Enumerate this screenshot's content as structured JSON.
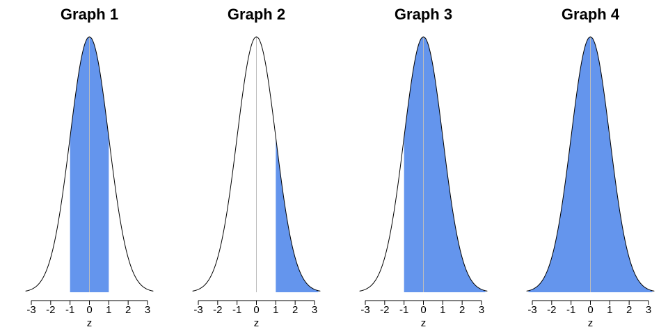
{
  "chart_data": [
    {
      "type": "area",
      "title": "Graph 1",
      "xlabel": "z",
      "ylabel": "",
      "xlim": [
        -3,
        3
      ],
      "x_ticks": [
        -3,
        -2,
        -1,
        0,
        1,
        2,
        3
      ],
      "curve": "standard normal density",
      "shaded_region": [
        -1,
        1
      ],
      "shade_color": "#6495ed",
      "grid": false
    },
    {
      "type": "area",
      "title": "Graph 2",
      "xlabel": "z",
      "ylabel": "",
      "xlim": [
        -3,
        3
      ],
      "x_ticks": [
        -3,
        -2,
        -1,
        0,
        1,
        2,
        3
      ],
      "curve": "standard normal density",
      "shaded_region": [
        1,
        3.2
      ],
      "shade_color": "#6495ed",
      "grid": false
    },
    {
      "type": "area",
      "title": "Graph 3",
      "xlabel": "z",
      "ylabel": "",
      "xlim": [
        -3,
        3
      ],
      "x_ticks": [
        -3,
        -2,
        -1,
        0,
        1,
        2,
        3
      ],
      "curve": "standard normal density",
      "shaded_region": [
        -1,
        3.2
      ],
      "shade_color": "#6495ed",
      "grid": false
    },
    {
      "type": "area",
      "title": "Graph 4",
      "xlabel": "z",
      "ylabel": "",
      "xlim": [
        -3,
        3
      ],
      "x_ticks": [
        -3,
        -2,
        -1,
        0,
        1,
        2,
        3
      ],
      "curve": "standard normal density",
      "shaded_region": [
        -3.2,
        3.2
      ],
      "shade_color": "#6495ed",
      "grid": false
    }
  ]
}
